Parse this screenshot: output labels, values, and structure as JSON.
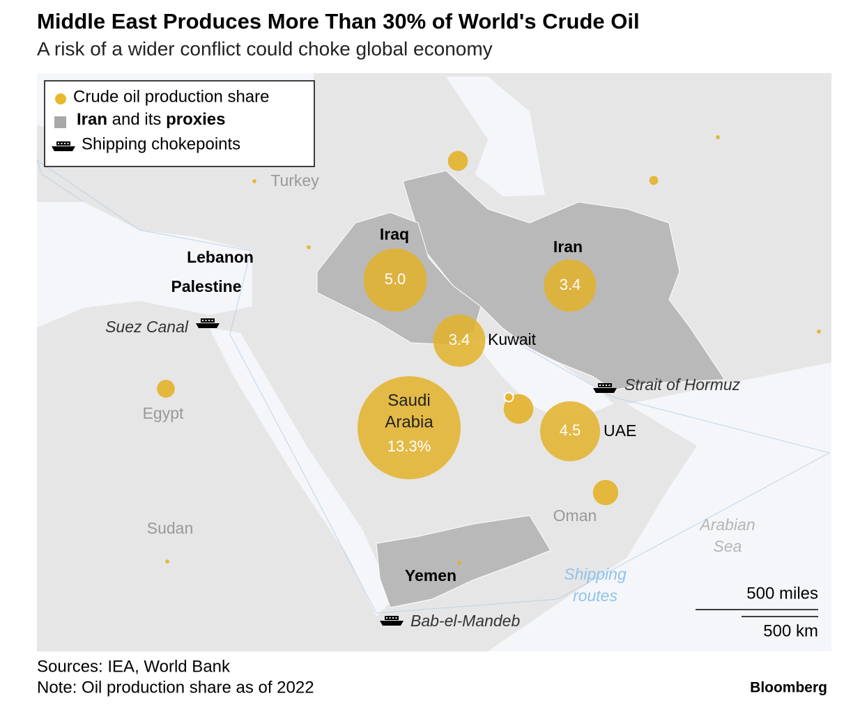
{
  "header": {
    "title": "Middle East Produces More Than 30% of World's Crude Oil",
    "subtitle": "A risk of a wider conflict could choke global economy"
  },
  "legend": {
    "production": "Crude oil production share",
    "proxies": [
      "Iran",
      " and its ",
      "proxies"
    ],
    "chokepoints": "Shipping chokepoints"
  },
  "bubbles": [
    {
      "lines": [
        "Saudi",
        "Arabia"
      ],
      "value": 13.3,
      "value_label": "13.3%"
    },
    {
      "value": 5.0,
      "value_label": "5.0"
    },
    {
      "value": 3.4
    },
    {
      "value": 3.4
    },
    {
      "value": 4.5
    },
    {
      "value": 1.1
    },
    {
      "value": 0.8
    },
    {
      "value": 0.5
    },
    {
      "value": 0.4
    },
    {
      "value": 0.1
    },
    {
      "value": 0.1
    },
    {
      "value": 0.02
    },
    {
      "value": 0.02
    },
    {
      "value": 0.02
    },
    {
      "value": 0.02
    },
    {
      "value": 0.02
    },
    {
      "value": 0.02
    }
  ],
  "places": [
    "Turkey",
    "Lebanon",
    "Palestine",
    "Iraq",
    "Iran",
    "Kuwait",
    "UAE",
    "Egypt",
    "Sudan",
    "Oman",
    "Yemen"
  ],
  "chokepoints": [
    "Suez Canal",
    "Strait of Hormuz",
    "Bab-el-Mandeb"
  ],
  "sea_labels": [
    {
      "lines": [
        "Arabian",
        "Sea"
      ]
    },
    {
      "lines": [
        "Shipping",
        "routes"
      ]
    }
  ],
  "scale": {
    "miles": "500 miles",
    "km": "500 km"
  },
  "footer": {
    "sources": "Sources: IEA, World Bank",
    "note": "Note: Oil production share as of 2022",
    "brand": "Bloomberg"
  }
}
